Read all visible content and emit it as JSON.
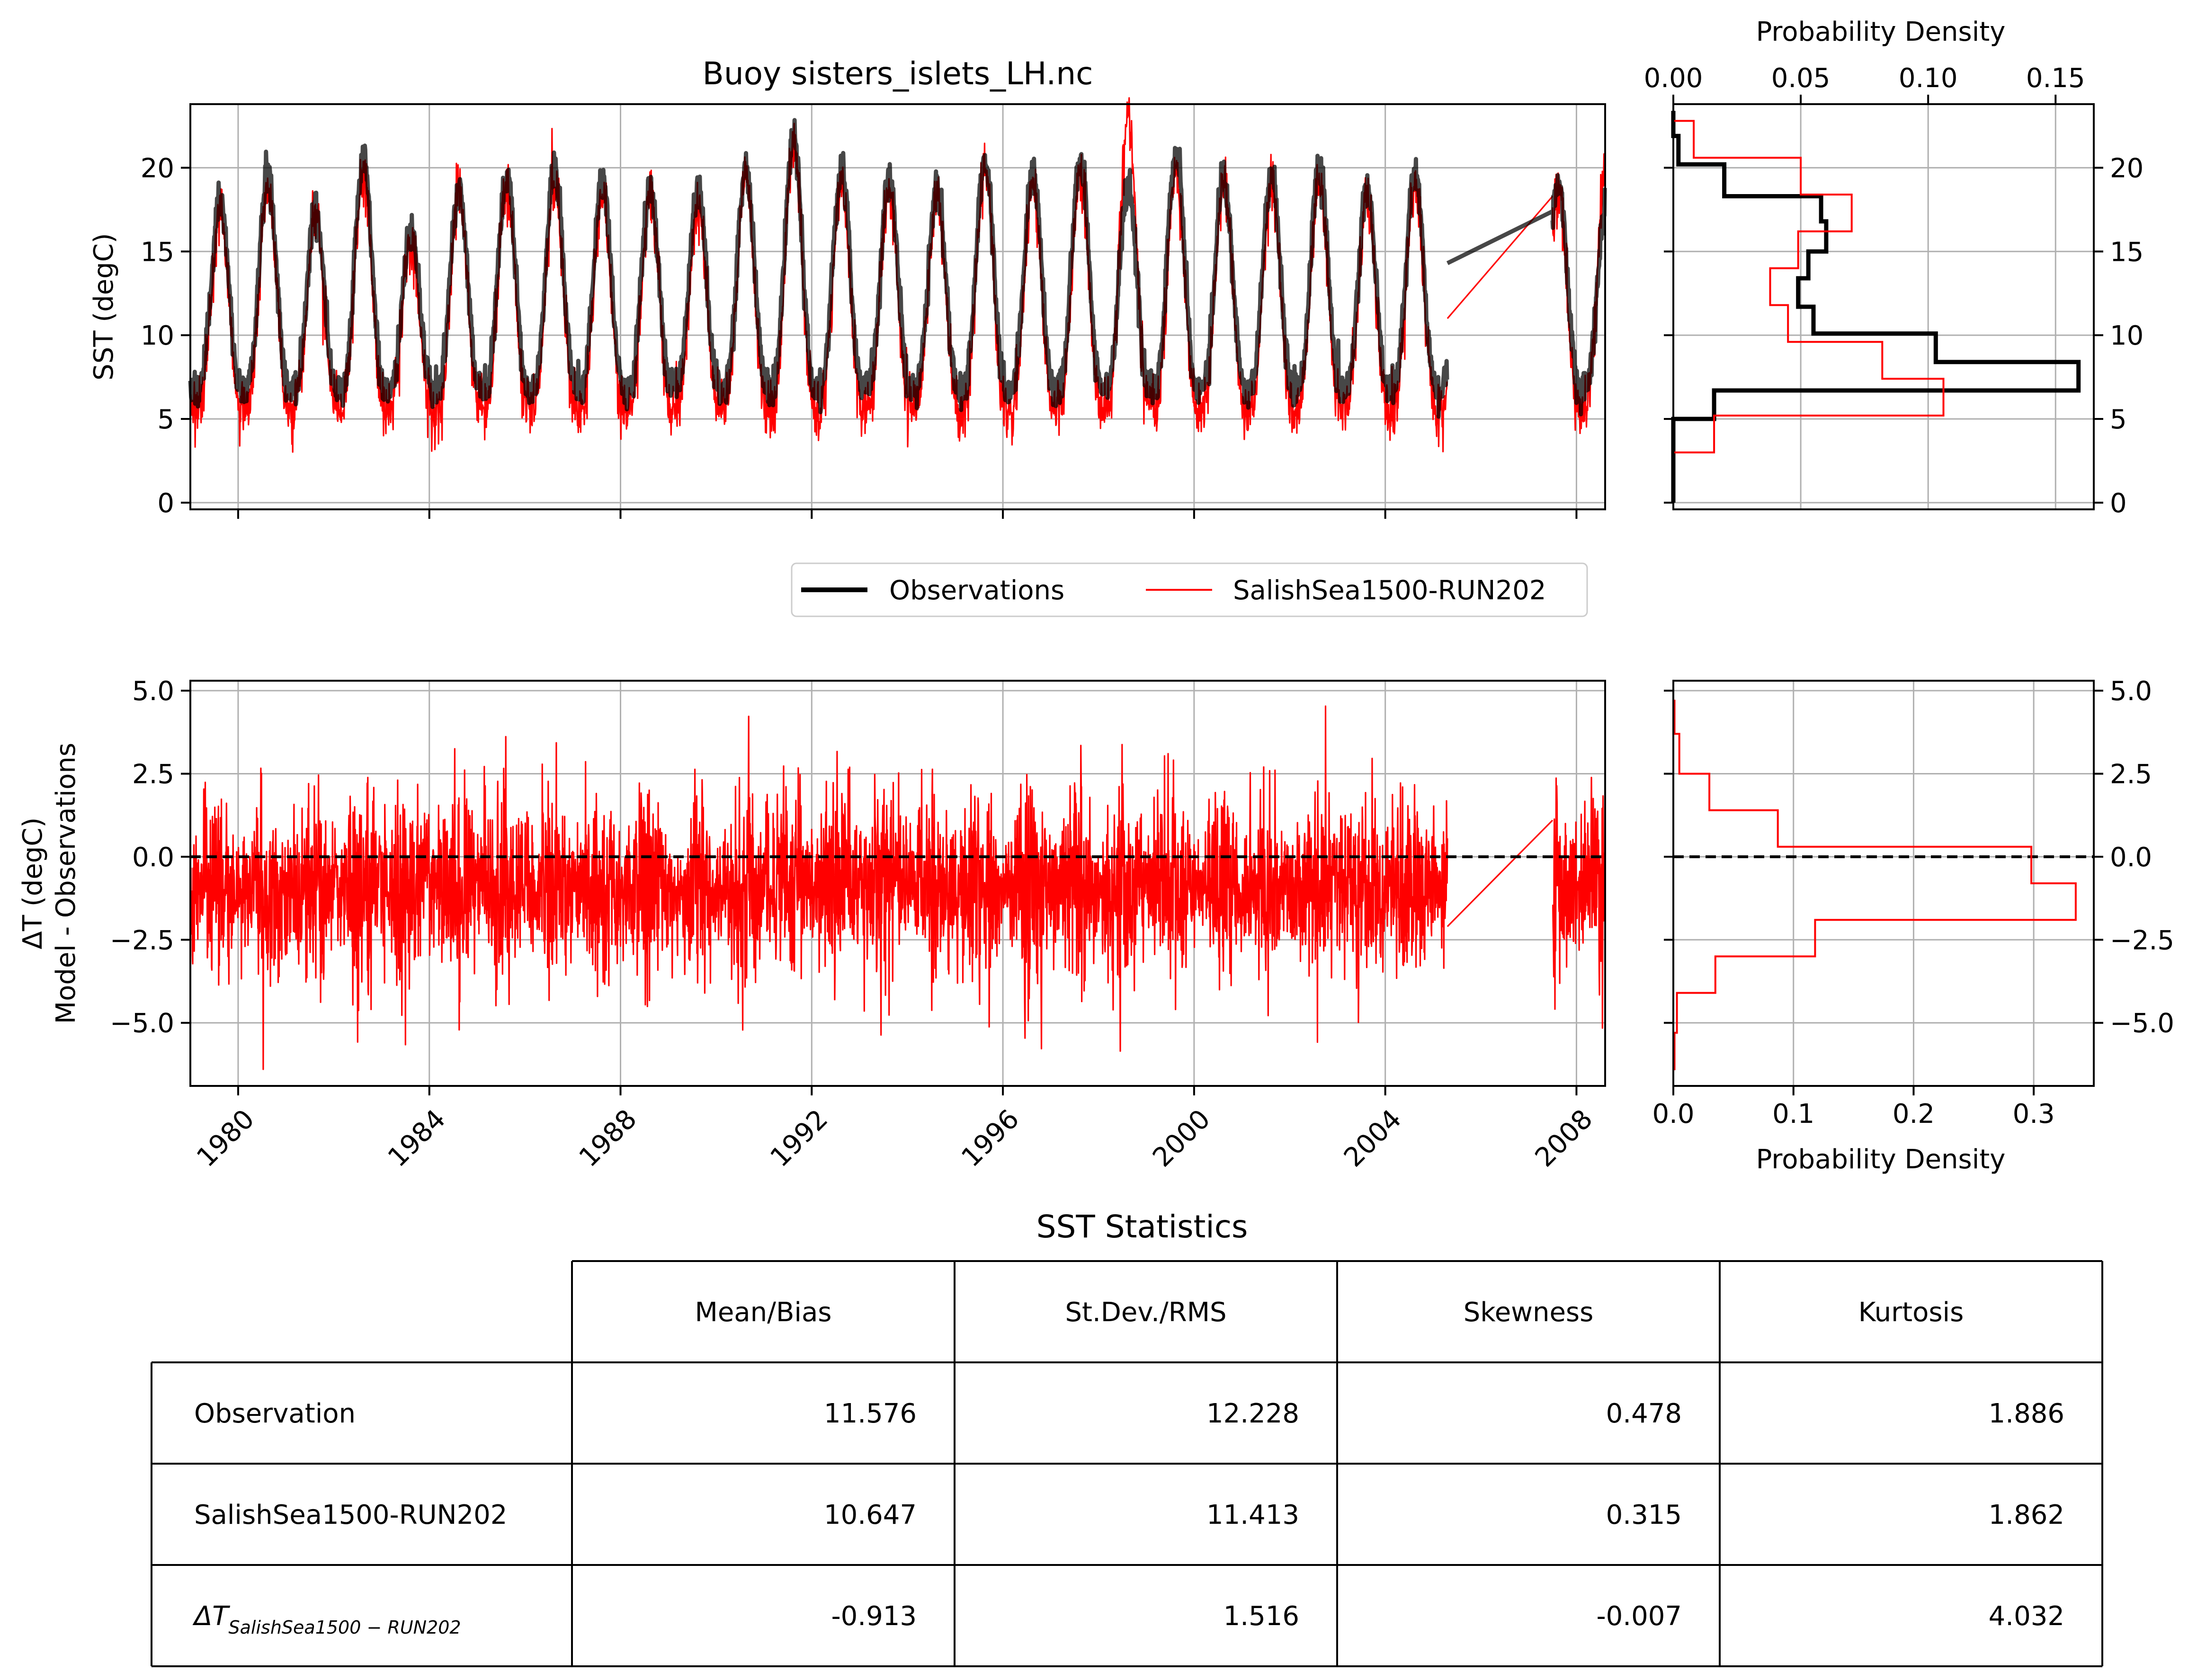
{
  "colors": {
    "observations": "#000000",
    "model": "#ff0000",
    "grid": "#b0b0b0",
    "axis": "#000000"
  },
  "chart_data": [
    {
      "id": "sst-timeseries",
      "type": "line",
      "title": "Buoy sisters_islets_LH.nc",
      "ylabel": "SST (degC)",
      "xlim": [
        1979.0,
        2008.6
      ],
      "ylim": [
        -0.4,
        23.8
      ],
      "x_ticks": [
        1980,
        1984,
        1988,
        1992,
        1996,
        2000,
        2004,
        2008
      ],
      "y_ticks": [
        0,
        5,
        10,
        15,
        20
      ],
      "y_tick_labels": [
        "0",
        "5",
        "10",
        "15",
        "20"
      ],
      "grid": true,
      "x_tick_labels_shown": false,
      "series": [
        {
          "name": "Observations",
          "color": "#000000",
          "kind": "seasonal",
          "x_start": 1979.0,
          "x_end": 2008.6,
          "gaps": [
            [
              2005.3,
              2007.5
            ]
          ],
          "winter_min": 6.8,
          "summer_peaks": [
            18.0,
            19.6,
            17.5,
            20.4,
            16.3,
            18.8,
            19.6,
            19.9,
            19.2,
            18.8,
            18.7,
            20.0,
            21.9,
            20.0,
            19.3,
            18.7,
            20.6,
            19.8,
            20.4,
            18.9,
            21.0,
            19.5,
            19.6,
            20.1,
            18.7,
            19.8,
            17.8,
            18.5,
            19.3,
            17.5
          ]
        },
        {
          "name": "SalishSea1500-RUN202",
          "color": "#ff0000",
          "kind": "seasonal",
          "x_start": 1979.0,
          "x_end": 2008.6,
          "gaps": [
            [
              2005.3,
              2007.5
            ]
          ],
          "winter_min": 5.6,
          "summer_peaks": [
            17.2,
            18.8,
            16.9,
            19.7,
            15.6,
            18.2,
            19.0,
            19.0,
            18.3,
            18.3,
            18.0,
            19.3,
            21.2,
            19.2,
            18.6,
            18.2,
            19.8,
            19.0,
            19.6,
            22.8,
            20.0,
            19.0,
            18.9,
            19.4,
            18.0,
            19.0,
            17.2,
            18.0,
            18.6,
            19.9
          ]
        }
      ]
    },
    {
      "id": "sst-histogram",
      "type": "histogram",
      "xlabel": "Probability Density",
      "x_axis_position": "top",
      "xlim": [
        0.0,
        0.165
      ],
      "ylim": [
        -0.4,
        23.8
      ],
      "x_ticks": [
        0.0,
        0.05,
        0.1,
        0.15
      ],
      "x_tick_labels": [
        "0.00",
        "0.05",
        "0.10",
        "0.15"
      ],
      "y_ticks": [
        0,
        5,
        10,
        15,
        20
      ],
      "y_tick_labels": [
        "0",
        "5",
        "10",
        "15",
        "20"
      ],
      "y_axis_position": "right",
      "grid": true,
      "series": [
        {
          "name": "Observations",
          "color": "#000000",
          "bin_edges": [
            0.0,
            1.5,
            3.1,
            5.0,
            6.7,
            8.4,
            10.1,
            11.7,
            13.4,
            15.0,
            16.8,
            18.3,
            20.2,
            21.9,
            23.4
          ],
          "density": [
            0.0,
            0.0,
            0.0,
            0.016,
            0.159,
            0.103,
            0.055,
            0.049,
            0.053,
            0.06,
            0.058,
            0.02,
            0.002,
            0.0
          ]
        },
        {
          "name": "SalishSea1500-RUN202",
          "color": "#ff0000",
          "bin_edges": [
            0.8,
            3.0,
            5.2,
            7.4,
            9.6,
            11.8,
            14.0,
            16.2,
            18.4,
            20.6,
            22.8
          ],
          "density": [
            0.0,
            0.016,
            0.106,
            0.082,
            0.045,
            0.038,
            0.049,
            0.07,
            0.05,
            0.008
          ]
        }
      ]
    },
    {
      "id": "delta-timeseries",
      "type": "line",
      "ylabel": "ΔT (degC)",
      "ylabel2": "Model - Observations",
      "xlim": [
        1979.0,
        2008.6
      ],
      "ylim": [
        -6.9,
        5.3
      ],
      "x_ticks": [
        1980,
        1984,
        1988,
        1992,
        1996,
        2000,
        2004,
        2008
      ],
      "x_tick_labels": [
        "1980",
        "1984",
        "1988",
        "1992",
        "1996",
        "2000",
        "2004",
        "2008"
      ],
      "y_ticks": [
        -5.0,
        -2.5,
        0.0,
        2.5,
        5.0
      ],
      "y_tick_labels": [
        "−5.0",
        "−2.5",
        "0.0",
        "2.5",
        "5.0"
      ],
      "grid": true,
      "zero_line": true,
      "series": [
        {
          "name": "SalishSea1500-RUN202",
          "color": "#ff0000",
          "kind": "noise",
          "mean": -0.913,
          "std": 1.25,
          "min": -6.4,
          "max": 4.7,
          "gaps": [
            [
              2005.3,
              2007.5
            ]
          ],
          "gap_endpoints": [
            -2.1,
            1.1
          ]
        }
      ]
    },
    {
      "id": "delta-histogram",
      "type": "histogram",
      "xlabel": "Probability Density",
      "xlim": [
        0.0,
        0.35
      ],
      "ylim": [
        -6.9,
        5.3
      ],
      "x_ticks": [
        0.0,
        0.1,
        0.2,
        0.3
      ],
      "x_tick_labels": [
        "0.0",
        "0.1",
        "0.2",
        "0.3"
      ],
      "y_ticks": [
        -5.0,
        -2.5,
        0.0,
        2.5,
        5.0
      ],
      "y_tick_labels": [
        "−5.0",
        "−2.5",
        "0.0",
        "2.5",
        "5.0"
      ],
      "y_axis_position": "right",
      "grid": true,
      "zero_line": true,
      "series": [
        {
          "name": "SalishSea1500-RUN202",
          "color": "#ff0000",
          "bin_edges": [
            -6.4,
            -5.3,
            -4.1,
            -3.0,
            -1.9,
            -0.8,
            0.3,
            1.4,
            2.5,
            3.7,
            4.7
          ],
          "density": [
            0.001,
            0.003,
            0.035,
            0.118,
            0.335,
            0.298,
            0.087,
            0.03,
            0.005,
            0.001
          ]
        }
      ]
    }
  ],
  "legend": {
    "placement": "center, between panels",
    "entries": [
      {
        "label": "Observations",
        "color": "#000000",
        "width": "thick"
      },
      {
        "label": "SalishSea1500-RUN202",
        "color": "#ff0000",
        "width": "thin"
      }
    ]
  },
  "stats_table": {
    "title": "SST Statistics",
    "columns": [
      "Mean/Bias",
      "St.Dev./RMS",
      "Skewness",
      "Kurtosis"
    ],
    "rows": [
      {
        "label": "Observation",
        "values": [
          "11.576",
          "12.228",
          "0.478",
          "1.886"
        ]
      },
      {
        "label": "SalishSea1500-RUN202",
        "values": [
          "10.647",
          "11.413",
          "0.315",
          "1.862"
        ]
      },
      {
        "label_main": "ΔT",
        "label_sub": "SalishSea1500 − RUN202",
        "values": [
          "-0.913",
          "1.516",
          "-0.007",
          "4.032"
        ]
      }
    ]
  }
}
